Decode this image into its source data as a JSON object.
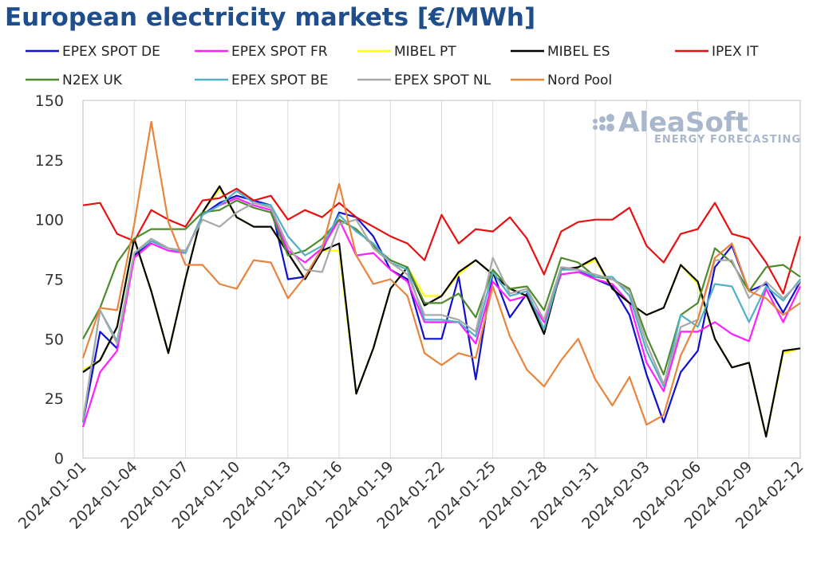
{
  "chart_data": {
    "type": "line",
    "title": "European electricity markets [€/MWh]",
    "xlabel": "",
    "ylabel": "",
    "ylim": [
      0,
      150
    ],
    "yticks": [
      0,
      25,
      50,
      75,
      100,
      125,
      150
    ],
    "grid": "vertical",
    "legend_position": "top",
    "x": [
      "2024-01-01",
      "2024-01-02",
      "2024-01-03",
      "2024-01-04",
      "2024-01-05",
      "2024-01-06",
      "2024-01-07",
      "2024-01-08",
      "2024-01-09",
      "2024-01-10",
      "2024-01-11",
      "2024-01-12",
      "2024-01-13",
      "2024-01-14",
      "2024-01-15",
      "2024-01-16",
      "2024-01-17",
      "2024-01-18",
      "2024-01-19",
      "2024-01-20",
      "2024-01-21",
      "2024-01-22",
      "2024-01-23",
      "2024-01-24",
      "2024-01-25",
      "2024-01-26",
      "2024-01-27",
      "2024-01-28",
      "2024-01-29",
      "2024-01-30",
      "2024-01-31",
      "2024-02-01",
      "2024-02-02",
      "2024-02-03",
      "2024-02-04",
      "2024-02-05",
      "2024-02-06",
      "2024-02-07",
      "2024-02-08",
      "2024-02-09",
      "2024-02-10",
      "2024-02-11",
      "2024-02-12"
    ],
    "x_tick_labels": [
      "2024-01-01",
      "2024-01-04",
      "2024-01-07",
      "2024-01-10",
      "2024-01-13",
      "2024-01-16",
      "2024-01-19",
      "2024-01-22",
      "2024-01-25",
      "2024-01-28",
      "2024-01-31",
      "2024-02-03",
      "2024-02-06",
      "2024-02-09",
      "2024-02-12"
    ],
    "series": [
      {
        "name": "EPEX SPOT DE",
        "color": "#1010d0",
        "values": [
          15,
          53,
          46,
          85,
          91,
          88,
          86,
          102,
          107,
          110,
          108,
          106,
          75,
          76,
          87,
          103,
          101,
          93,
          79,
          75,
          50,
          50,
          76,
          33,
          78,
          59,
          69,
          54,
          80,
          79,
          75,
          72,
          60,
          35,
          15,
          36,
          45,
          80,
          89,
          70,
          73,
          61,
          74
        ]
      },
      {
        "name": "EPEX SPOT FR",
        "color": "#ff20ff",
        "values": [
          13,
          36,
          45,
          84,
          90,
          87,
          86,
          102,
          106,
          109,
          106,
          104,
          87,
          82,
          88,
          100,
          85,
          86,
          79,
          74,
          57,
          57,
          57,
          48,
          74,
          66,
          68,
          57,
          77,
          78,
          75,
          73,
          65,
          40,
          28,
          53,
          53,
          57,
          52,
          49,
          71,
          57,
          72
        ]
      },
      {
        "name": "MIBEL PT",
        "color": "#ffff00",
        "values": [
          37,
          41,
          55,
          92,
          70,
          44,
          75,
          103,
          113,
          101,
          97,
          97,
          86,
          75,
          87,
          87,
          27,
          46,
          71,
          80,
          68,
          68,
          77,
          83,
          77,
          71,
          68,
          52,
          79,
          80,
          83,
          71,
          65,
          60,
          63,
          81,
          73,
          50,
          38,
          40,
          9,
          44,
          46
        ]
      },
      {
        "name": "MIBEL ES",
        "color": "#000000",
        "values": [
          36,
          41,
          55,
          92,
          70,
          44,
          75,
          103,
          114,
          101,
          97,
          97,
          86,
          75,
          87,
          90,
          27,
          46,
          71,
          80,
          64,
          68,
          78,
          83,
          77,
          71,
          68,
          52,
          79,
          80,
          84,
          71,
          65,
          60,
          63,
          81,
          74,
          50,
          38,
          40,
          9,
          45,
          46
        ]
      },
      {
        "name": "IPEX IT",
        "color": "#e81010",
        "values": [
          106,
          107,
          94,
          91,
          104,
          100,
          97,
          108,
          109,
          113,
          108,
          110,
          100,
          104,
          101,
          107,
          101,
          97,
          93,
          90,
          83,
          102,
          90,
          96,
          95,
          101,
          92,
          77,
          95,
          99,
          100,
          100,
          105,
          89,
          82,
          94,
          96,
          107,
          94,
          92,
          82,
          69,
          93
        ]
      },
      {
        "name": "N2EX UK",
        "color": "#4e8a2e",
        "values": [
          50,
          63,
          82,
          92,
          96,
          96,
          96,
          103,
          104,
          108,
          105,
          103,
          85,
          87,
          92,
          100,
          96,
          89,
          83,
          80,
          65,
          65,
          69,
          59,
          79,
          71,
          72,
          62,
          84,
          82,
          76,
          75,
          71,
          51,
          35,
          60,
          65,
          88,
          82,
          70,
          80,
          81,
          76
        ]
      },
      {
        "name": "EPEX SPOT BE",
        "color": "#4fb0c6",
        "values": [
          15,
          62,
          49,
          86,
          91,
          88,
          86,
          102,
          106,
          112,
          107,
          106,
          93,
          85,
          89,
          102,
          95,
          90,
          82,
          79,
          58,
          58,
          57,
          51,
          78,
          68,
          70,
          54,
          79,
          79,
          76,
          76,
          68,
          45,
          30,
          60,
          55,
          73,
          72,
          57,
          72,
          66,
          75
        ]
      },
      {
        "name": "EPEX SPOT NL",
        "color": "#a8a8a8",
        "values": [
          16,
          62,
          48,
          86,
          92,
          88,
          87,
          100,
          97,
          103,
          107,
          105,
          89,
          79,
          78,
          98,
          100,
          88,
          82,
          77,
          60,
          60,
          58,
          53,
          84,
          69,
          71,
          58,
          80,
          79,
          77,
          75,
          70,
          48,
          31,
          55,
          58,
          83,
          83,
          67,
          74,
          67,
          74
        ]
      },
      {
        "name": "Nord Pool",
        "color": "#e8843c",
        "values": [
          42,
          63,
          62,
          98,
          141,
          99,
          81,
          81,
          73,
          71,
          83,
          82,
          67,
          76,
          88,
          115,
          85,
          73,
          75,
          68,
          44,
          39,
          44,
          42,
          72,
          51,
          37,
          30,
          41,
          50,
          33,
          22,
          34,
          14,
          18,
          43,
          58,
          84,
          90,
          70,
          67,
          60,
          65
        ]
      }
    ]
  },
  "watermark": {
    "brand": "AleaSoft",
    "tagline": "ENERGY FORECASTING"
  }
}
